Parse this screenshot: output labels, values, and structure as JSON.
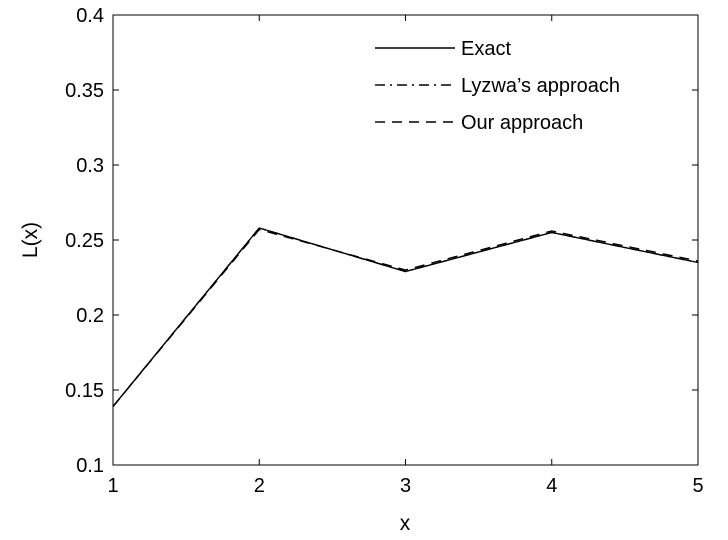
{
  "chart_data": {
    "type": "line",
    "xlabel": "x",
    "ylabel": "L(x)",
    "xlim": [
      1,
      5
    ],
    "ylim": [
      0.1,
      0.4
    ],
    "x_ticks": [
      "1",
      "2",
      "3",
      "4",
      "5"
    ],
    "y_ticks": [
      "0.1",
      "0.15",
      "0.2",
      "0.25",
      "0.3",
      "0.35",
      "0.4"
    ],
    "x": [
      1,
      2,
      3,
      4,
      5
    ],
    "series": [
      {
        "name": "Exact",
        "values": [
          0.139,
          0.258,
          0.229,
          0.255,
          0.235
        ],
        "dash": "solid"
      },
      {
        "name": "Lyzwa’s approach",
        "values": [
          0.139,
          0.258,
          0.229,
          0.255,
          0.235
        ],
        "dash": "dashdot"
      },
      {
        "name": "Our approach",
        "values": [
          0.139,
          0.257,
          0.23,
          0.256,
          0.236
        ],
        "dash": "dashed"
      }
    ],
    "grid": false,
    "legend_position": "top-right",
    "line_color": "#000000"
  }
}
